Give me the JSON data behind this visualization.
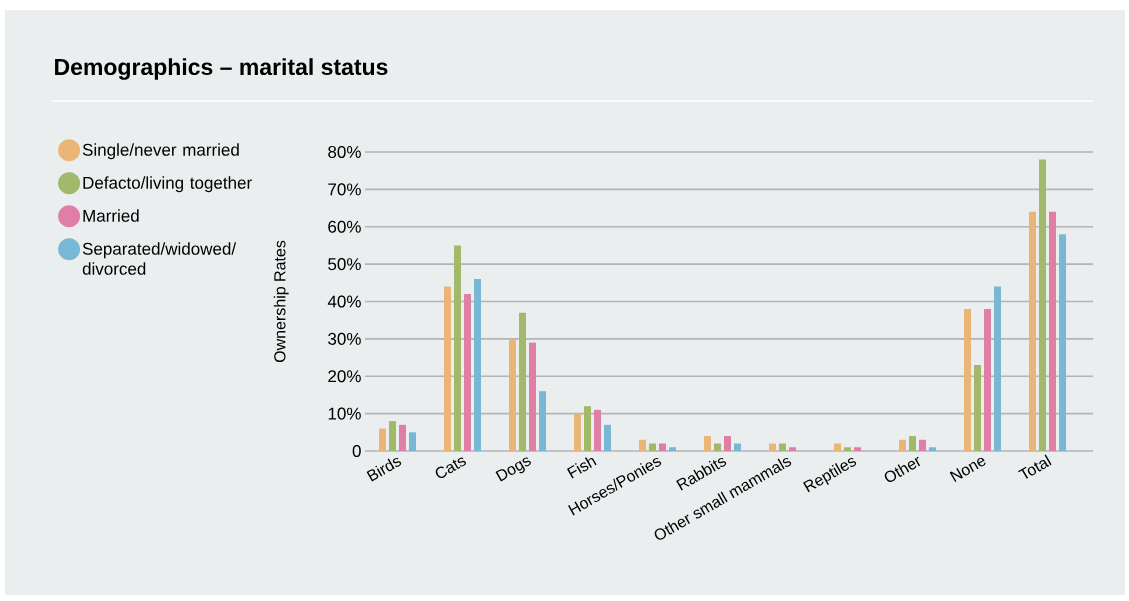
{
  "chart_data": {
    "type": "bar",
    "title": "Demographics – marital status",
    "ylabel": "Ownership Rates",
    "categories": [
      "Birds",
      "Cats",
      "Dogs",
      "Fish",
      "Horses/Ponies",
      "Rabbits",
      "Other small mammals",
      "Reptiles",
      "Other",
      "None",
      "Total"
    ],
    "series": [
      {
        "name": "Single/never married",
        "color": "#ebb577",
        "values": [
          6,
          44,
          30,
          10,
          3,
          4,
          2,
          2,
          3,
          38,
          64
        ]
      },
      {
        "name": "Defacto/living together",
        "color": "#a2b86a",
        "values": [
          8,
          55,
          37,
          12,
          2,
          2,
          2,
          1,
          4,
          23,
          78
        ]
      },
      {
        "name": "Married",
        "color": "#e07fa6",
        "values": [
          7,
          42,
          29,
          11,
          2,
          4,
          1,
          1,
          3,
          38,
          64
        ]
      },
      {
        "name": "Separated/widowed/ divorced",
        "color": "#78b8d4",
        "values": [
          5,
          46,
          16,
          7,
          1,
          2,
          0,
          0,
          1,
          44,
          58
        ]
      }
    ],
    "ylim": [
      0,
      80
    ],
    "yticks": [
      0,
      {
        "value": 10,
        "label": "10%"
      },
      {
        "value": 20,
        "label": "20%"
      },
      {
        "value": 30,
        "label": "30%"
      },
      {
        "value": 40,
        "label": "40%"
      },
      {
        "value": 50,
        "label": "50%"
      },
      {
        "value": 60,
        "label": "60%"
      },
      {
        "value": 70,
        "label": "70%"
      },
      {
        "value": 80,
        "label": "80%"
      }
    ],
    "grid": "y",
    "legend": "left"
  }
}
